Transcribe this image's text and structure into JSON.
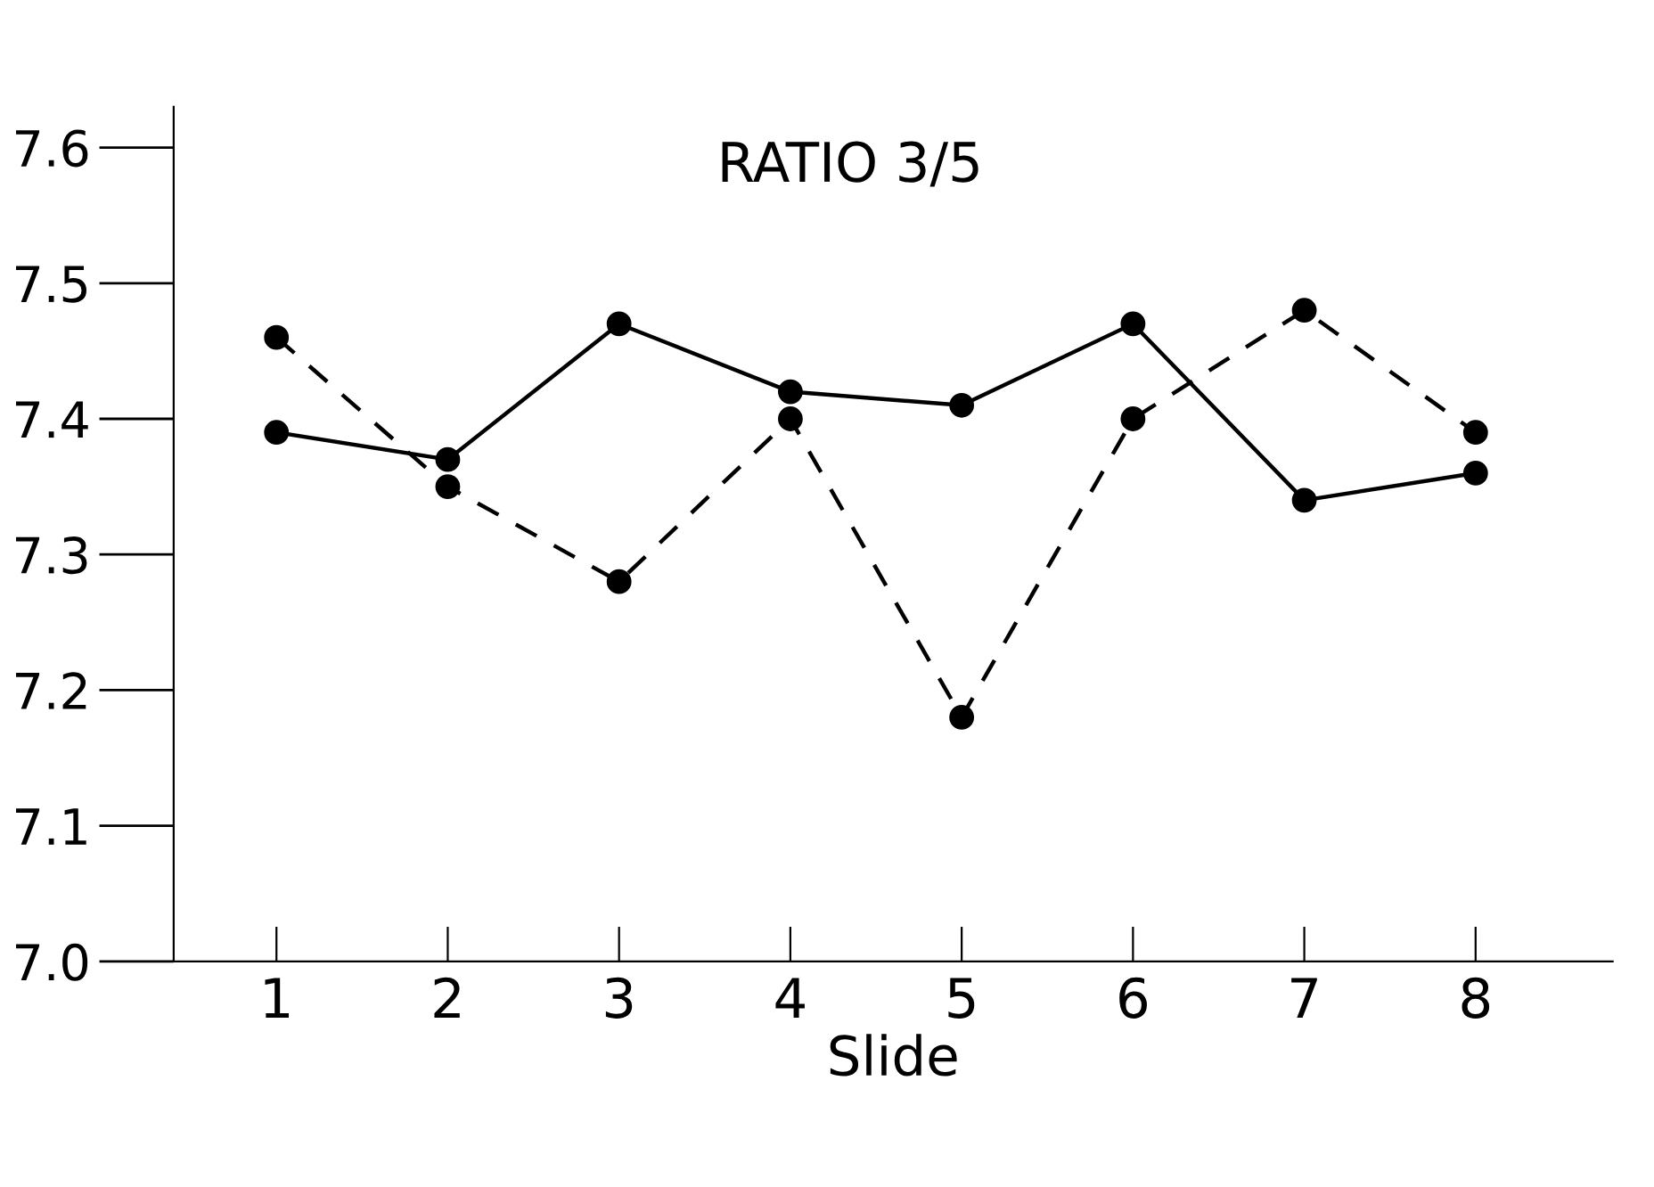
{
  "chart_data": {
    "type": "line",
    "title": "RATIO 3/5",
    "xlabel": "Slide",
    "categories": [
      "1",
      "2",
      "3",
      "4",
      "5",
      "6",
      "7",
      "8"
    ],
    "series": [
      {
        "color": "#000000",
        "line_style": "solid",
        "values": [
          7.39,
          7.37,
          7.47,
          7.42,
          7.41,
          7.47,
          7.34,
          7.36
        ]
      },
      {
        "color": "#000000",
        "line_style": "dashed",
        "values": [
          7.46,
          7.35,
          7.28,
          7.4,
          7.18,
          7.4,
          7.48,
          7.39
        ]
      }
    ],
    "ylim": [
      7.0,
      7.63
    ],
    "yticks": [
      {
        "value": 7.0,
        "label": "7.0"
      },
      7.1,
      7.2,
      7.3,
      7.4,
      7.5,
      7.6
    ],
    "marker": "circle",
    "grid": false,
    "legend": false
  }
}
